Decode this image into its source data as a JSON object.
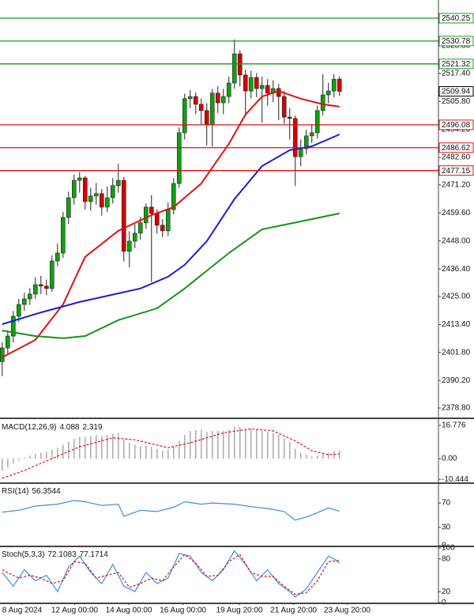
{
  "chart_data": [
    {
      "type": "candlestick",
      "xlim": [
        -0.4,
        78.9
      ],
      "ylim": [
        2374.87,
        2547.78
      ],
      "yticks": [
        {
          "value": 2378.8,
          "label": "2378.80"
        },
        {
          "value": 2390.2,
          "label": "2390.20"
        },
        {
          "value": 2401.8,
          "label": "2401.80"
        },
        {
          "value": 2413.4,
          "label": "2413.40"
        },
        {
          "value": 2425.0,
          "label": "2425.00"
        },
        {
          "value": 2436.4,
          "label": "2436.40"
        },
        {
          "value": 2448.0,
          "label": "2448.00"
        },
        {
          "value": 2459.6,
          "label": "2459.60"
        },
        {
          "value": 2471.2,
          "label": "2471.20"
        },
        {
          "value": 2482.6,
          "label": "2482.60"
        },
        {
          "value": 2494.2,
          "label": "2494.20"
        },
        {
          "value": 2505.8,
          "label": "2505.80"
        },
        {
          "value": 2517.4,
          "label": "2517.40"
        },
        {
          "value": 2528.8,
          "label": "2528.80"
        }
      ],
      "xticks": [
        {
          "value": 3.6,
          "label": "8 Aug 2024"
        },
        {
          "value": 13.1,
          "label": "12 Aug 00:00"
        },
        {
          "value": 22.9,
          "label": "14 Aug 00:00"
        },
        {
          "value": 32.7,
          "label": "16 Aug 00:00"
        },
        {
          "value": 42.9,
          "label": "19 Aug 20:00"
        },
        {
          "value": 52.7,
          "label": "21 Aug 20:00"
        },
        {
          "value": 62.4,
          "label": "23 Aug 20:00"
        }
      ],
      "up_color": "#11a011",
      "down_color": "#d80000",
      "candles": {
        "open": [
          2398.0,
          2403.7,
          2408.6,
          2416.8,
          2421.7,
          2424.0,
          2426.0,
          2429.9,
          2429.3,
          2428.3,
          2439.7,
          2443.0,
          2457.7,
          2465.9,
          2473.1,
          2474.1,
          2464.3,
          2466.6,
          2467.6,
          2462.0,
          2465.9,
          2470.9,
          2473.1,
          2443.7,
          2447.9,
          2451.2,
          2455.5,
          2462.0,
          2459.4,
          2454.5,
          2452.2,
          2461.0,
          2471.8,
          2492.8,
          2506.9,
          2507.8,
          2504.6,
          2502.0,
          2496.0,
          2509.2,
          2505.2,
          2507.8,
          2513.4,
          2525.5,
          2516.7,
          2510.1,
          2515.7,
          2511.1,
          2512.4,
          2509.2,
          2511.1,
          2507.8,
          2499.3,
          2498.7,
          2482.9,
          2486.2,
          2491.5,
          2492.8,
          2502.0,
          2508.5,
          2510.1,
          2515.0
        ],
        "high": [
          2406.0,
          2411.0,
          2419.0,
          2424.0,
          2426.5,
          2428.5,
          2433.0,
          2433.5,
          2432.0,
          2442.0,
          2447.0,
          2460.0,
          2468.5,
          2475.5,
          2476.5,
          2475.0,
          2470.0,
          2472.0,
          2469.5,
          2470.5,
          2474.0,
          2480.0,
          2474.5,
          2452.0,
          2455.0,
          2458.0,
          2463.5,
          2467.0,
          2461.0,
          2457.0,
          2464.0,
          2474.0,
          2495.0,
          2509.0,
          2510.5,
          2509.5,
          2507.0,
          2505.0,
          2511.0,
          2512.0,
          2511.0,
          2516.0,
          2531.5,
          2527.0,
          2519.0,
          2518.5,
          2517.5,
          2516.0,
          2515.0,
          2514.5,
          2513.0,
          2510.0,
          2503.0,
          2500.0,
          2490.0,
          2494.0,
          2496.0,
          2504.0,
          2517.0,
          2513.5,
          2517.0,
          2516.0
        ],
        "low": [
          2392.0,
          2401.0,
          2406.0,
          2414.5,
          2419.0,
          2421.5,
          2424.0,
          2426.0,
          2425.5,
          2427.0,
          2437.5,
          2441.0,
          2455.0,
          2463.0,
          2468.0,
          2461.0,
          2460.5,
          2463.0,
          2458.5,
          2460.0,
          2463.5,
          2468.0,
          2439.5,
          2437.0,
          2445.0,
          2448.5,
          2453.0,
          2431.0,
          2451.0,
          2449.5,
          2450.0,
          2459.0,
          2470.0,
          2490.0,
          2503.0,
          2500.5,
          2496.0,
          2487.5,
          2487.0,
          2501.0,
          2500.5,
          2505.0,
          2511.0,
          2512.0,
          2500.0,
          2507.0,
          2507.5,
          2497.0,
          2504.0,
          2505.5,
          2498.0,
          2496.5,
          2490.0,
          2470.8,
          2479.0,
          2484.0,
          2488.5,
          2490.5,
          2500.0,
          2505.0,
          2507.5,
          2508.0
        ],
        "close": [
          2403.7,
          2408.6,
          2416.8,
          2421.7,
          2424.0,
          2426.0,
          2429.9,
          2429.3,
          2428.3,
          2439.7,
          2443.0,
          2457.7,
          2465.9,
          2473.1,
          2474.1,
          2464.3,
          2466.6,
          2467.6,
          2462.0,
          2465.9,
          2470.9,
          2473.1,
          2443.7,
          2447.9,
          2451.2,
          2455.5,
          2462.0,
          2459.4,
          2454.5,
          2452.2,
          2461.0,
          2471.8,
          2492.8,
          2506.9,
          2507.8,
          2504.6,
          2502.0,
          2496.0,
          2509.2,
          2505.2,
          2507.8,
          2513.4,
          2525.5,
          2516.7,
          2510.1,
          2515.7,
          2511.1,
          2512.4,
          2509.2,
          2511.1,
          2507.8,
          2499.3,
          2498.7,
          2482.9,
          2486.2,
          2491.5,
          2492.8,
          2502.0,
          2508.5,
          2510.1,
          2515.0,
          2509.94
        ]
      },
      "series": [
        {
          "color": "#e01010",
          "x": [
            0,
            6,
            11,
            15,
            21,
            27,
            31,
            36,
            41,
            44,
            47,
            50,
            54,
            58,
            61
          ],
          "values": [
            2399.8,
            2407.0,
            2421.7,
            2441.4,
            2452.2,
            2458.7,
            2462.0,
            2471.8,
            2488.2,
            2500.3,
            2507.8,
            2510.1,
            2506.9,
            2504.6,
            2503.6
          ]
        },
        {
          "color": "#1a1adc",
          "x": [
            0,
            7,
            14,
            25,
            30,
            33,
            37,
            42,
            47,
            52,
            56,
            61
          ],
          "values": [
            2413.5,
            2418.4,
            2422.7,
            2428.3,
            2433.2,
            2438.1,
            2447.9,
            2465.3,
            2479.0,
            2485.6,
            2487.2,
            2492.1
          ]
        },
        {
          "color": "#17921a",
          "x": [
            0,
            6,
            11,
            15,
            21,
            28,
            33,
            41,
            47,
            54,
            61
          ],
          "values": [
            2410.9,
            2408.6,
            2407.7,
            2408.6,
            2415.2,
            2420.1,
            2428.3,
            2443.0,
            2452.8,
            2456.1,
            2459.4
          ]
        }
      ],
      "levels": [
        {
          "value": 2540.25,
          "color": "#1a9a1a"
        },
        {
          "value": 2530.78,
          "color": "#1a9a1a"
        },
        {
          "value": 2521.32,
          "color": "#1a9a1a"
        },
        {
          "value": 2496.08,
          "color": "#e01010"
        },
        {
          "value": 2486.62,
          "color": "#e01010"
        },
        {
          "value": 2477.15,
          "color": "#e01010"
        }
      ]
    },
    {
      "type": "macd",
      "label": "MACD(12,26,9)",
      "ylim": [
        -11.98,
        19.17
      ],
      "yticks": [
        16.776,
        {
          "value": 0,
          "label": "0.00"
        },
        -10.444
      ],
      "histogram": {
        "color": "#aaaaaa",
        "values": [
          -6,
          -4.5,
          -2.5,
          -1,
          0.5,
          1.5,
          2.5,
          3,
          3.5,
          4.5,
          5.5,
          7,
          8.5,
          10,
          11,
          11,
          11.5,
          12,
          11.5,
          12,
          12.5,
          13,
          9.5,
          8,
          7,
          6.5,
          6.5,
          6,
          5,
          4,
          4.5,
          6,
          9,
          12,
          14,
          14.5,
          14.5,
          13.5,
          14,
          14,
          14,
          14.5,
          16,
          16,
          15,
          15,
          14.5,
          14,
          13.5,
          13,
          12,
          10,
          8.5,
          5,
          3,
          2,
          1,
          1.5,
          2.5,
          3,
          4,
          4.088
        ]
      },
      "series": [
        {
          "color": "#e01010",
          "dash": true,
          "x": [
            0,
            4,
            9,
            14,
            20,
            24,
            30,
            34,
            40,
            45,
            49,
            53,
            56,
            59,
            61
          ],
          "values": [
            -10,
            -6,
            0,
            6,
            10.5,
            9.5,
            5.5,
            8,
            13,
            15,
            14,
            9,
            4,
            2,
            2.319
          ]
        }
      ]
    },
    {
      "type": "line",
      "label": "RSI(14)",
      "ylim": [
        0,
        100
      ],
      "yticks": [
        70,
        30,
        0
      ],
      "series": [
        {
          "color": "#3a8ee0",
          "x": [
            0,
            3,
            6,
            10,
            13,
            15,
            18,
            21,
            22,
            25,
            28,
            31,
            33,
            36,
            38,
            42,
            45,
            48,
            51,
            53,
            55,
            57,
            59,
            61
          ],
          "values": [
            55,
            58,
            65,
            68,
            74,
            72,
            66,
            68,
            48,
            58,
            56,
            63,
            72,
            68,
            70,
            68,
            64,
            61,
            56,
            42,
            47,
            54,
            62,
            56.3544
          ]
        }
      ]
    },
    {
      "type": "line",
      "label": "Stoch(5,3,3)",
      "ylim": [
        0,
        100
      ],
      "yticks": [
        100,
        80,
        20,
        0
      ],
      "series": [
        {
          "color": "#3a8ee0",
          "x": [
            0,
            2,
            4,
            6,
            8,
            10,
            12,
            14,
            16,
            18,
            20,
            22,
            24,
            26,
            28,
            30,
            32,
            34,
            36,
            38,
            40,
            42,
            44,
            46,
            48,
            50,
            52,
            53,
            55,
            57,
            59,
            60,
            61
          ],
          "values": [
            55,
            30,
            60,
            40,
            50,
            20,
            65,
            85,
            55,
            35,
            70,
            30,
            20,
            55,
            35,
            45,
            90,
            85,
            55,
            40,
            60,
            95,
            70,
            40,
            60,
            35,
            20,
            10,
            25,
            55,
            85,
            80,
            72.1083
          ]
        },
        {
          "color": "#e01010",
          "dash": true,
          "x": [
            0,
            3,
            5,
            7,
            9,
            11,
            13,
            15,
            17,
            19,
            21,
            23,
            25,
            27,
            29,
            31,
            33,
            35,
            37,
            39,
            41,
            43,
            45,
            47,
            49,
            51,
            53,
            55,
            57,
            59,
            61
          ],
          "values": [
            60,
            45,
            50,
            45,
            35,
            40,
            75,
            72,
            45,
            50,
            55,
            28,
            35,
            45,
            40,
            65,
            88,
            72,
            48,
            50,
            75,
            88,
            55,
            48,
            48,
            30,
            15,
            18,
            40,
            75,
            77.1714
          ]
        }
      ]
    }
  ]
}
